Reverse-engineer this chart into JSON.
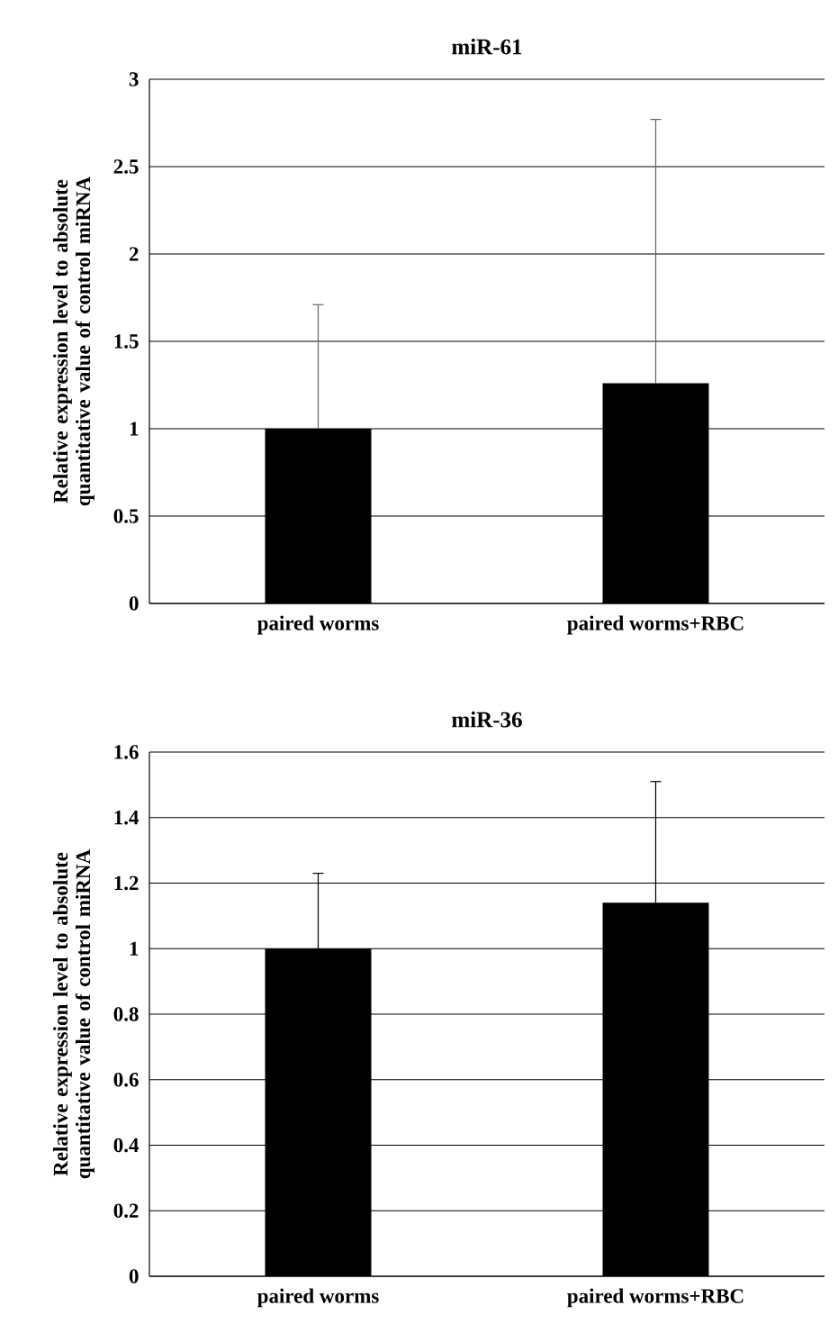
{
  "chart_data": [
    {
      "type": "bar",
      "title": "miR-61",
      "ylabel": "Relative expression level to absolute quantitative value of control miRNA",
      "categories": [
        "paired worms",
        "paired worms+RBC"
      ],
      "values": [
        1.0,
        1.26
      ],
      "errors": [
        [
          1.0,
          1.71
        ],
        [
          1.26,
          2.77
        ]
      ],
      "color": "#000000",
      "ylim": [
        0,
        3
      ],
      "yticks": [
        0,
        0.5,
        1,
        1.5,
        2,
        2.5,
        3
      ],
      "grid": "y"
    },
    {
      "type": "bar",
      "title": "miR-36",
      "ylabel": "Relative expression level to absolute quantitative value of control miRNA",
      "categories": [
        "paired worms",
        "paired worms+RBC"
      ],
      "values": [
        1.0,
        1.14
      ],
      "errors": [
        [
          1.0,
          1.23
        ],
        [
          1.14,
          1.51
        ]
      ],
      "color": "#000000",
      "ylim": [
        0,
        1.6
      ],
      "yticks": [
        0,
        0.2,
        0.4,
        0.6,
        0.8,
        1,
        1.2,
        1.4,
        1.6
      ],
      "grid": "y"
    }
  ]
}
